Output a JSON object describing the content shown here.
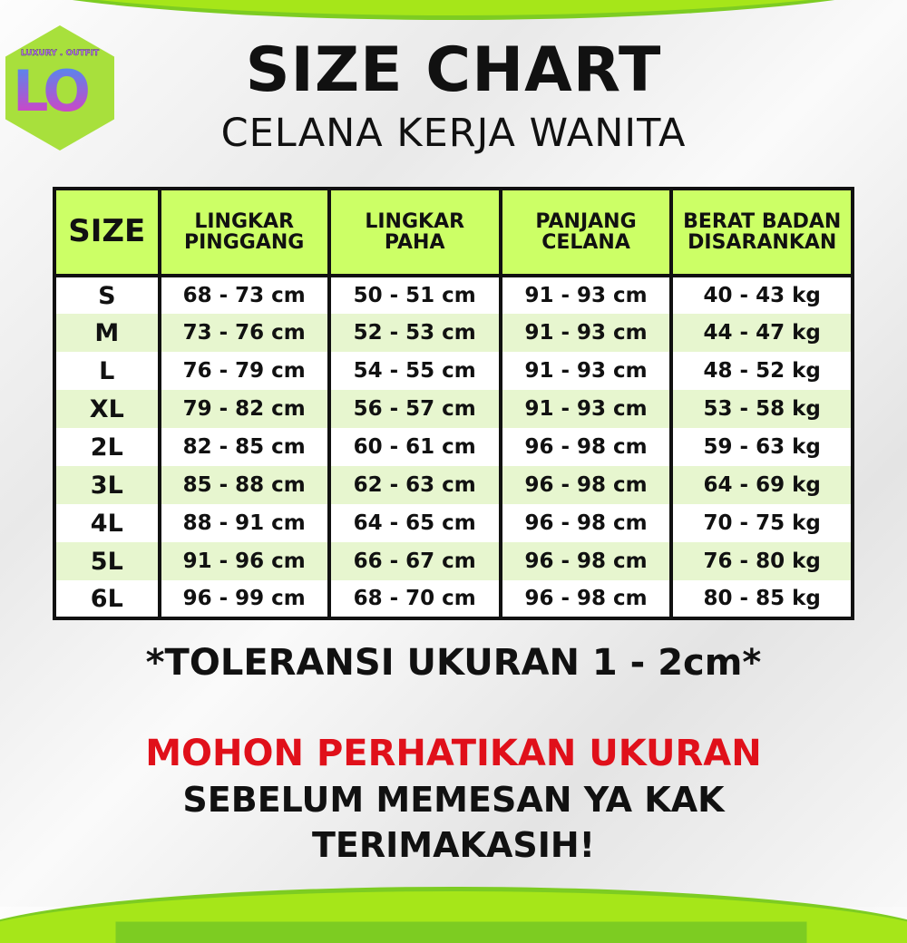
{
  "logo": {
    "brand": "LUXURY . OUTFIT",
    "letters": "LO"
  },
  "title": "SIZE CHART",
  "subtitle": "CELANA KERJA WANITA",
  "table": {
    "headers": [
      [
        "SIZE",
        ""
      ],
      [
        "LINGKAR",
        "PINGGANG"
      ],
      [
        "LINGKAR",
        "PAHA"
      ],
      [
        "PANJANG",
        "CELANA"
      ],
      [
        "BERAT BADAN",
        "DISARANKAN"
      ]
    ],
    "rows": [
      [
        "S",
        "68 - 73 cm",
        "50 - 51 cm",
        "91 - 93 cm",
        "40 - 43 kg"
      ],
      [
        "M",
        "73 - 76 cm",
        "52 - 53 cm",
        "91 - 93 cm",
        "44 - 47 kg"
      ],
      [
        "L",
        "76 - 79 cm",
        "54 - 55 cm",
        "91 - 93 cm",
        "48 - 52 kg"
      ],
      [
        "XL",
        "79 - 82 cm",
        "56 - 57 cm",
        "91 - 93 cm",
        "53 - 58 kg"
      ],
      [
        "2L",
        "82 - 85 cm",
        "60 - 61 cm",
        "96 - 98 cm",
        "59 - 63 kg"
      ],
      [
        "3L",
        "85 - 88 cm",
        "62 - 63 cm",
        "96 - 98 cm",
        "64 - 69 kg"
      ],
      [
        "4L",
        "88 - 91 cm",
        "64 - 65 cm",
        "96 - 98 cm",
        "70 - 75 kg"
      ],
      [
        "5L",
        "91 - 96 cm",
        "66 - 67 cm",
        "96 - 98 cm",
        "76 - 80 kg"
      ],
      [
        "6L",
        "96 - 99 cm",
        "68 - 70 cm",
        "96 - 98 cm",
        "80 - 85 kg"
      ]
    ]
  },
  "tolerance": "*TOLERANSI UKURAN 1 - 2cm*",
  "notice": {
    "line1": "MOHON PERHATIKAN UKURAN",
    "line2": "SEBELUM MEMESAN YA KAK",
    "line3": "TERIMAKASIH!"
  },
  "colors": {
    "accent": "#a6e619",
    "header": "#ccff66",
    "alt_row": "#e7f6cf",
    "warning": "#e0101a"
  }
}
